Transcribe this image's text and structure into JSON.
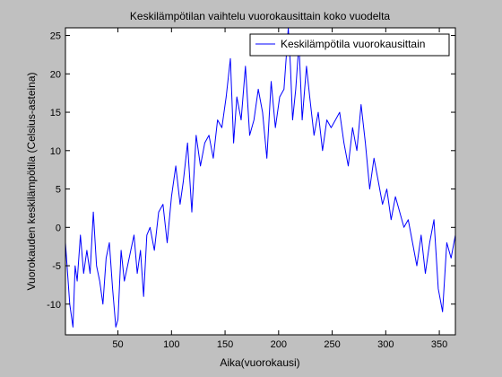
{
  "chart_data": {
    "type": "line",
    "title": "Keskilämpötilan vaihtelu vuorokausittain koko vuodelta",
    "xlabel": "Aika(vuorokausi)",
    "ylabel": "Vuorokauden keskilämpötila (Celsius-asteina)",
    "xlim": [
      1,
      365
    ],
    "ylim": [
      -14,
      26
    ],
    "xticks": [
      50,
      100,
      150,
      200,
      250,
      300,
      350
    ],
    "yticks": [
      -10,
      -5,
      0,
      5,
      10,
      15,
      20,
      25
    ],
    "grid": false,
    "legend_position": "top-right",
    "series": [
      {
        "name": "Keskilämpötila vuorokausittain",
        "color": "#0000ff",
        "x": [
          1,
          5,
          8,
          10,
          12,
          15,
          18,
          21,
          24,
          27,
          30,
          33,
          36,
          39,
          42,
          45,
          48,
          50,
          53,
          56,
          59,
          62,
          65,
          68,
          71,
          74,
          77,
          80,
          84,
          88,
          92,
          96,
          100,
          104,
          108,
          111,
          115,
          119,
          123,
          127,
          131,
          135,
          139,
          143,
          147,
          151,
          155,
          158,
          161,
          165,
          169,
          173,
          177,
          181,
          185,
          189,
          193,
          197,
          201,
          205,
          209,
          211,
          213,
          216,
          219,
          222,
          226,
          229,
          233,
          237,
          241,
          245,
          249,
          253,
          257,
          261,
          265,
          269,
          273,
          277,
          281,
          285,
          289,
          293,
          297,
          301,
          305,
          309,
          313,
          317,
          321,
          325,
          329,
          333,
          337,
          341,
          345,
          349,
          353,
          357,
          361,
          365
        ],
        "y": [
          -2,
          -10,
          -13,
          -5,
          -7,
          -1,
          -6,
          -3,
          -6,
          2,
          -5,
          -7,
          -10,
          -4,
          -2,
          -8,
          -13,
          -12,
          -3,
          -7,
          -5,
          -3,
          -1,
          -6,
          -3,
          -9,
          -1,
          0,
          -3,
          2,
          3,
          -2,
          4,
          8,
          3,
          6,
          11,
          2,
          12,
          8,
          11,
          12,
          9,
          14,
          13,
          17,
          22,
          11,
          17,
          14,
          21,
          12,
          14,
          18,
          15,
          9,
          19,
          13,
          17,
          18,
          26,
          21,
          14,
          18,
          24,
          14,
          21,
          17,
          12,
          15,
          10,
          14,
          13,
          14,
          15,
          11,
          8,
          13,
          10,
          16,
          11,
          5,
          9,
          6,
          3,
          5,
          1,
          4,
          2,
          0,
          1,
          -2,
          -5,
          -1,
          -6,
          -2,
          1,
          -8,
          -11,
          -2,
          -4,
          -1
        ]
      }
    ]
  }
}
